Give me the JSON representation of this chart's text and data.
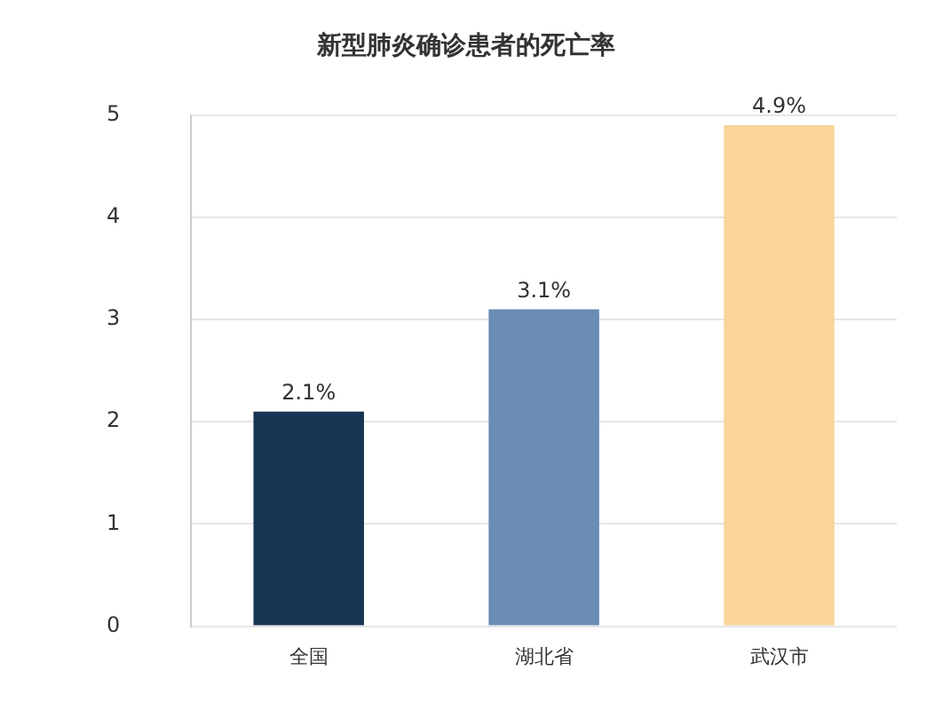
{
  "chart_data": {
    "type": "bar",
    "title": "新型肺炎确诊患者的死亡率",
    "categories": [
      "全国",
      "湖北省",
      "武汉市"
    ],
    "values": [
      2.1,
      3.1,
      4.9
    ],
    "value_labels": [
      "2.1%",
      "3.1%",
      "4.9%"
    ],
    "colors": [
      "#183654",
      "#6b8cb5",
      "#f9d59b"
    ],
    "ylim": [
      0,
      5
    ],
    "yticks": [
      0,
      1,
      2,
      3,
      4,
      5
    ],
    "grid": "y",
    "legend": false
  }
}
